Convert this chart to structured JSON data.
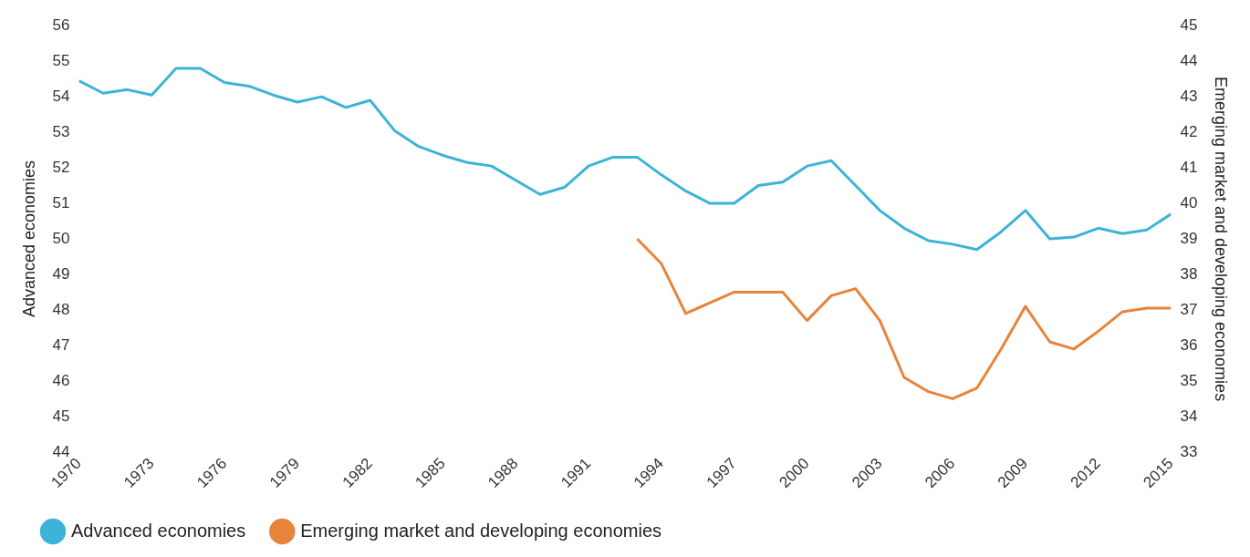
{
  "chart_data": {
    "type": "line",
    "ylabel": "Advanced economies",
    "y2label": "Emerging market and developing economies",
    "x": [
      1970,
      1971,
      1972,
      1973,
      1974,
      1975,
      1976,
      1977,
      1978,
      1979,
      1980,
      1981,
      1982,
      1983,
      1984,
      1985,
      1986,
      1987,
      1988,
      1989,
      1990,
      1991,
      1992,
      1993,
      1994,
      1995,
      1996,
      1997,
      1998,
      1999,
      2000,
      2001,
      2002,
      2003,
      2004,
      2005,
      2006,
      2007,
      2008,
      2009,
      2010,
      2011,
      2012,
      2013,
      2014,
      2015
    ],
    "series": [
      {
        "name": "Advanced economies",
        "color": "#3cb4d8",
        "values": [
          54.45,
          54.1,
          54.2,
          54.05,
          54.8,
          54.8,
          54.4,
          54.3,
          54.05,
          53.85,
          54.0,
          53.7,
          53.9,
          53.05,
          52.6,
          52.35,
          52.15,
          52.05,
          51.65,
          51.25,
          51.45,
          52.05,
          52.3,
          52.3,
          51.8,
          51.35,
          51.0,
          51.0,
          51.5,
          51.6,
          52.05,
          52.2,
          51.5,
          50.8,
          50.3,
          49.95,
          49.85,
          49.7,
          50.2,
          50.8,
          50.0,
          50.05,
          50.3,
          50.15,
          50.25,
          50.7
        ]
      },
      {
        "name": "Emerging market and developing economies",
        "color": "#e8833a",
        "axis": "y2",
        "values": [
          null,
          null,
          null,
          null,
          null,
          null,
          null,
          null,
          null,
          null,
          null,
          null,
          null,
          null,
          null,
          null,
          null,
          null,
          null,
          null,
          null,
          null,
          null,
          39.0,
          38.3,
          36.9,
          37.2,
          37.5,
          37.5,
          37.5,
          36.7,
          37.4,
          37.6,
          36.7,
          35.1,
          34.7,
          34.5,
          34.8,
          35.9,
          37.1,
          36.1,
          35.9,
          36.4,
          36.95,
          37.05,
          37.05
        ]
      }
    ],
    "xlim": [
      1970,
      2015
    ],
    "xticks": [
      1970,
      1973,
      1976,
      1979,
      1982,
      1985,
      1988,
      1991,
      1994,
      1997,
      2000,
      2003,
      2006,
      2009,
      2012,
      2015
    ],
    "ylim": [
      44,
      56
    ],
    "yticks": [
      44,
      45,
      46,
      47,
      48,
      49,
      50,
      51,
      52,
      53,
      54,
      55,
      56
    ],
    "y2lim": [
      33,
      45
    ],
    "y2ticks": [
      33,
      34,
      35,
      36,
      37,
      38,
      39,
      40,
      41,
      42,
      43,
      44,
      45
    ],
    "grid": false,
    "legend": "bottom",
    "marker": "none",
    "line_style": "solid"
  }
}
